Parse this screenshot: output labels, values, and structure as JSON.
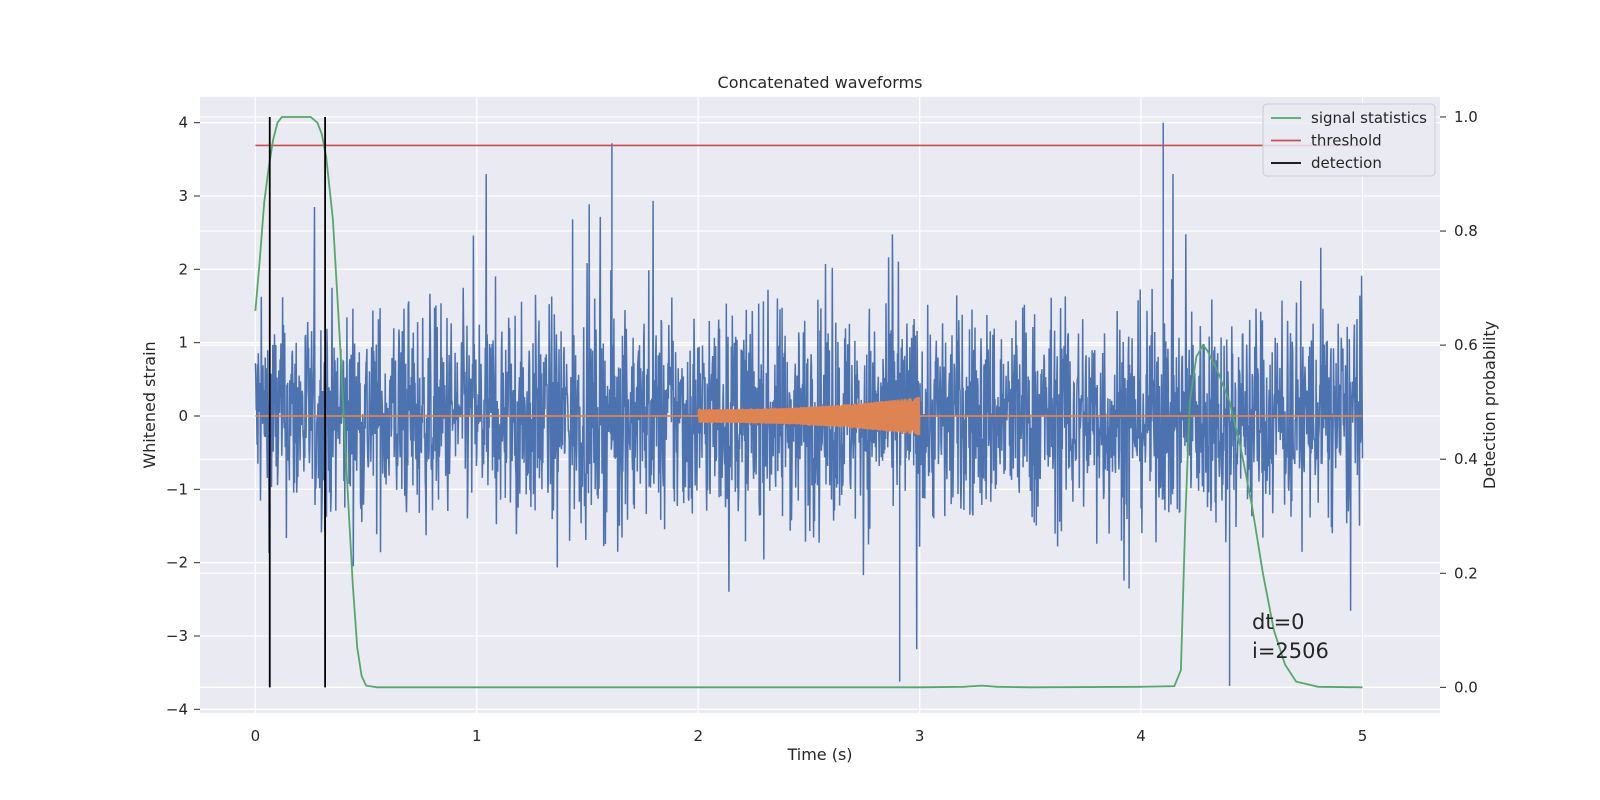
{
  "chart_data": {
    "type": "line",
    "title": "Concatenated waveforms",
    "xlabel": "Time (s)",
    "ylabel": "Whitened strain",
    "ylabel_right": "Detection probability",
    "xlim": [
      -0.25,
      5.35
    ],
    "ylim": [
      -4.05,
      4.35
    ],
    "ylim_right": [
      -0.045,
      1.035
    ],
    "x_ticks": [
      0,
      1,
      2,
      3,
      4,
      5
    ],
    "y_ticks": [
      -4,
      -3,
      -2,
      -1,
      0,
      1,
      2,
      3,
      4
    ],
    "y_ticks_right": [
      0.0,
      0.2,
      0.4,
      0.6,
      0.8,
      1.0
    ],
    "x_tick_labels": [
      "0",
      "1",
      "2",
      "3",
      "4",
      "5"
    ],
    "y_tick_labels": [
      "−4",
      "−3",
      "−2",
      "−1",
      "0",
      "1",
      "2",
      "3",
      "4"
    ],
    "y_tick_labels_right": [
      "0.0",
      "0.2",
      "0.4",
      "0.6",
      "0.8",
      "1.0"
    ],
    "grid": true,
    "legend_position": "top-right",
    "colors": {
      "strain": "#4c72b0",
      "injection": "#dd8452",
      "signal_statistics": "#55a868",
      "threshold": "#c44e52",
      "detection": "#000000",
      "background": "#eaeaf2",
      "grid": "#ffffff"
    },
    "series": [
      {
        "key": "signal_statistics",
        "name": "signal statistics",
        "axis": "right",
        "x": [
          0.0,
          0.02,
          0.04,
          0.06,
          0.08,
          0.1,
          0.12,
          0.15,
          0.2,
          0.25,
          0.28,
          0.3,
          0.32,
          0.35,
          0.38,
          0.4,
          0.42,
          0.44,
          0.46,
          0.48,
          0.5,
          0.55,
          1.0,
          2.0,
          3.0,
          3.2,
          3.28,
          3.35,
          3.5,
          4.0,
          4.15,
          4.18,
          4.2,
          4.22,
          4.25,
          4.28,
          4.3,
          4.35,
          4.4,
          4.45,
          4.5,
          4.55,
          4.6,
          4.65,
          4.7,
          4.8,
          5.0
        ],
        "y": [
          0.66,
          0.75,
          0.85,
          0.91,
          0.96,
          0.99,
          1.0,
          1.0,
          1.0,
          1.0,
          0.99,
          0.97,
          0.93,
          0.82,
          0.62,
          0.47,
          0.32,
          0.18,
          0.07,
          0.02,
          0.003,
          0.0,
          0.0,
          0.0,
          0.0,
          0.001,
          0.003,
          0.001,
          0.0,
          0.001,
          0.002,
          0.03,
          0.3,
          0.5,
          0.58,
          0.6,
          0.59,
          0.55,
          0.5,
          0.42,
          0.32,
          0.2,
          0.1,
          0.04,
          0.01,
          0.001,
          0.0
        ]
      },
      {
        "key": "threshold",
        "name": "threshold",
        "axis": "right",
        "x": [
          0.0,
          5.0
        ],
        "y": [
          0.95,
          0.95
        ]
      },
      {
        "key": "detection",
        "name": "detection",
        "axis": "right",
        "x": [
          0.065,
          0.315
        ],
        "y_range": [
          0.0,
          1.0
        ]
      },
      {
        "key": "strain",
        "axis": "left",
        "x_range": [
          0.0,
          5.0
        ],
        "approx_amplitude": 2.5,
        "peaks": [
          {
            "x": 1.61,
            "y": 3.72
          },
          {
            "x": 4.1,
            "y": 4.0
          },
          {
            "x": 4.4,
            "y": -3.68
          },
          {
            "x": 2.91,
            "y": -3.62
          }
        ]
      },
      {
        "key": "injection",
        "axis": "left",
        "x_range": [
          0.0,
          5.0
        ],
        "chirp_x_range": [
          2.0,
          3.0
        ],
        "chirp_amplitude": [
          0.09,
          0.26
        ]
      }
    ],
    "annotations": [
      "dt=0",
      "i=2506"
    ]
  }
}
